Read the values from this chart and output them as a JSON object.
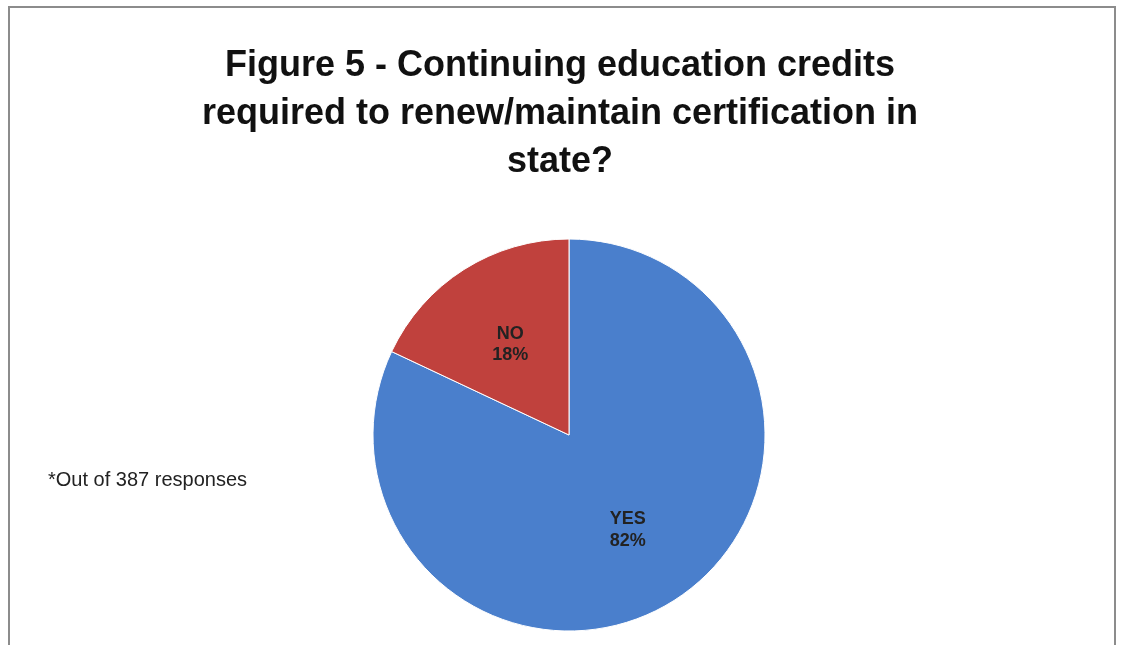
{
  "chart_data": {
    "type": "pie",
    "title": "Figure 5 - Continuing education credits required to renew/maintain certification in state?",
    "categories": [
      "YES",
      "NO"
    ],
    "values": [
      82,
      18
    ],
    "colors": [
      "#4a7fcc",
      "#c0413d"
    ],
    "value_labels": [
      "82%",
      "18%"
    ],
    "annotations": [
      "*Out of 387 responses"
    ]
  }
}
